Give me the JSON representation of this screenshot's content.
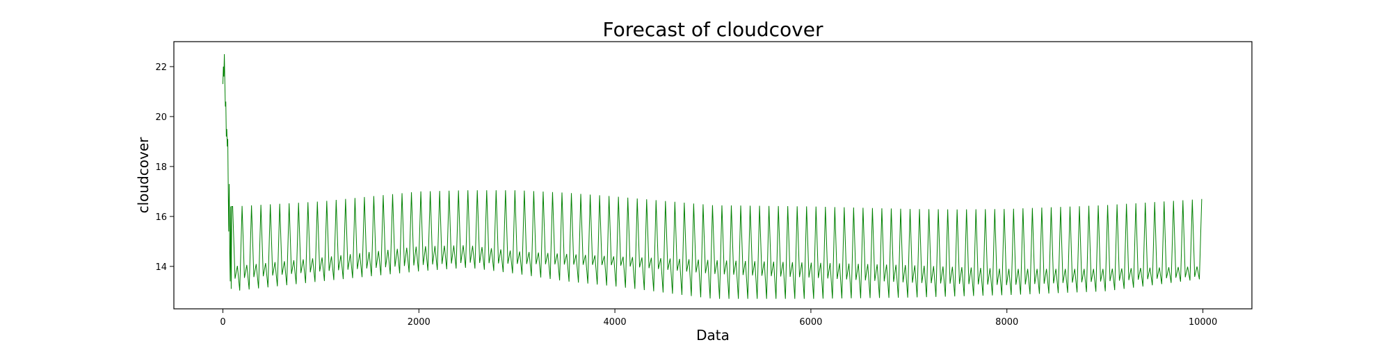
{
  "chart_data": {
    "type": "line",
    "title": "Forecast of cloudcover",
    "xlabel": "Data",
    "ylabel": "cloudcover",
    "xlim": [
      -500,
      10500
    ],
    "ylim": [
      12.3,
      23.0
    ],
    "xticks": [
      0,
      2000,
      4000,
      6000,
      8000,
      10000
    ],
    "xtick_labels": [
      "0",
      "2000",
      "4000",
      "6000",
      "8000",
      "10000"
    ],
    "yticks": [
      14,
      16,
      18,
      20,
      22
    ],
    "ytick_labels": [
      "14",
      "16",
      "18",
      "20",
      "22"
    ],
    "grid": false,
    "legend": "none",
    "series": [
      {
        "color": "#008000",
        "x_range": [
          0,
          10000
        ],
        "oscillation_period": 48,
        "initial_segment": {
          "x": [
            0,
            5,
            10,
            15,
            20,
            25,
            30,
            35,
            40,
            45,
            50,
            55,
            60,
            65,
            70,
            75,
            80,
            85,
            90
          ],
          "y": [
            21.3,
            22.0,
            21.6,
            22.5,
            21.4,
            20.4,
            20.6,
            19.2,
            19.5,
            18.8,
            19.1,
            17.0,
            15.4,
            17.3,
            14.5,
            13.4,
            16.4,
            13.1,
            16.4
          ]
        },
        "upper_envelope": {
          "x": [
            100,
            1000,
            2000,
            2500,
            3000,
            3500,
            4000,
            5000,
            6000,
            7000,
            7500,
            8000,
            9000,
            10000
          ],
          "y": [
            16.4,
            16.6,
            17.0,
            17.05,
            17.05,
            16.95,
            16.8,
            16.45,
            16.4,
            16.3,
            16.28,
            16.3,
            16.45,
            16.7
          ]
        },
        "lower_envelope": {
          "x": [
            100,
            1000,
            2000,
            2500,
            3000,
            3500,
            4000,
            5000,
            6000,
            7000,
            7500,
            8000,
            9000,
            10000
          ],
          "y": [
            13.0,
            13.4,
            13.8,
            13.95,
            13.7,
            13.4,
            13.2,
            12.7,
            12.7,
            12.75,
            12.8,
            12.85,
            13.0,
            13.5
          ]
        },
        "inner_band_upper": {
          "x": [
            100,
            1000,
            2000,
            2500,
            3000,
            4000,
            5000,
            6000,
            7000,
            8000,
            9000,
            10000
          ],
          "y": [
            14.0,
            14.35,
            14.8,
            14.85,
            14.6,
            14.4,
            14.25,
            14.15,
            14.05,
            13.9,
            13.9,
            14.0
          ]
        },
        "inner_band_lower": {
          "x": [
            100,
            1000,
            2000,
            2500,
            3000,
            4000,
            5000,
            6000,
            7000,
            8000,
            9000,
            10000
          ],
          "y": [
            13.5,
            13.8,
            14.05,
            14.15,
            14.1,
            14.05,
            13.7,
            13.55,
            13.35,
            13.25,
            13.4,
            13.6
          ]
        }
      }
    ]
  }
}
